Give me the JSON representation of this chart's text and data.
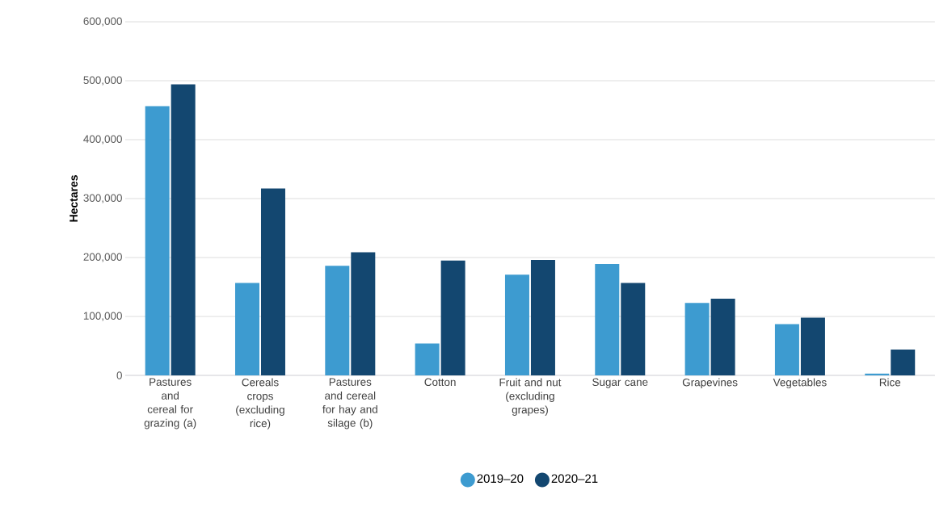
{
  "chart_data": {
    "type": "bar",
    "ylabel": "Hectares",
    "categories": [
      "Pastures and cereal for grazing (a)",
      "Cereals crops (excluding rice)",
      "Pastures and cereal for hay and silage (b)",
      "Cotton",
      "Fruit and nut (excluding grapes)",
      "Sugar cane",
      "Grapevines",
      "Vegetables",
      "Rice"
    ],
    "series": [
      {
        "name": "2019–20",
        "color": "#3d9bd0",
        "values": [
          457000,
          157000,
          186000,
          54000,
          171000,
          189000,
          123000,
          87000,
          3000
        ]
      },
      {
        "name": "2020–21",
        "color": "#134770",
        "values": [
          494000,
          317000,
          209000,
          195000,
          196000,
          157000,
          130000,
          98000,
          44000
        ]
      }
    ],
    "ylim": [
      0,
      600000
    ],
    "yticks": [
      {
        "value": 0,
        "label": "0"
      },
      {
        "value": 100000,
        "label": "100,000"
      },
      {
        "value": 200000,
        "label": "200,000"
      },
      {
        "value": 300000,
        "label": "300,000"
      },
      {
        "value": 400000,
        "label": "400,000"
      },
      {
        "value": 500000,
        "label": "500,000"
      },
      {
        "value": 600000,
        "label": "600,000"
      }
    ],
    "grid": "y",
    "legend": "bottom"
  }
}
